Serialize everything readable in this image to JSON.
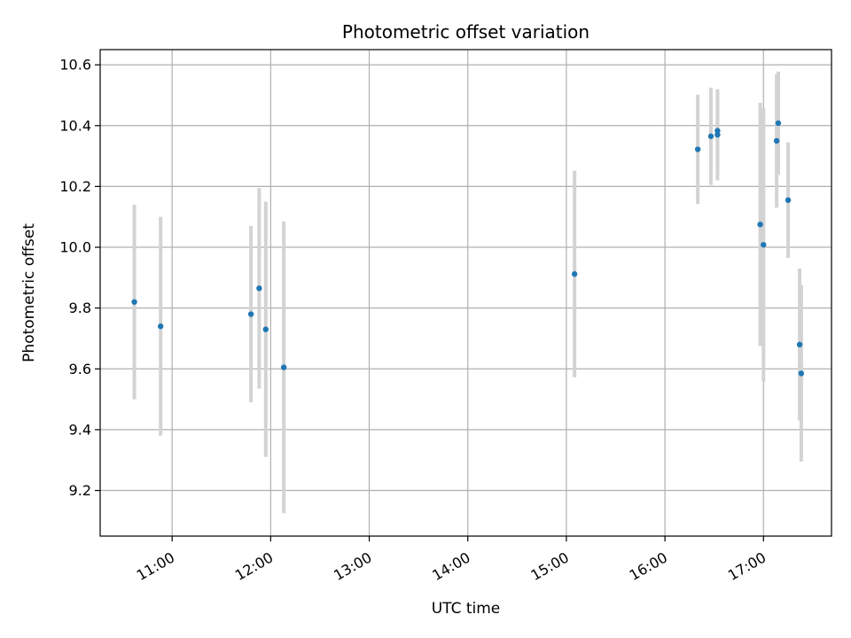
{
  "chart_data": {
    "type": "scatter",
    "title": "Photometric offset variation",
    "xlabel": "UTC time",
    "ylabel": "Photometric offset",
    "x_tick_labels": [
      "11:00",
      "12:00",
      "13:00",
      "14:00",
      "15:00",
      "16:00",
      "17:00"
    ],
    "x_ticks_hours": [
      11,
      12,
      13,
      14,
      15,
      16,
      17
    ],
    "y_ticks": [
      9.2,
      9.4,
      9.6,
      9.8,
      10.0,
      10.2,
      10.4,
      10.6
    ],
    "y_tick_labels": [
      "9.2",
      "9.4",
      "9.6",
      "9.8",
      "10.0",
      "10.2",
      "10.4",
      "10.6"
    ],
    "xlim_hours": [
      10.27,
      17.69
    ],
    "ylim": [
      9.05,
      10.65
    ],
    "grid": true,
    "marker_color": "#1f77b4",
    "errorbar_color": "#d3d3d3",
    "points": [
      {
        "time": "10:37",
        "y": 9.82,
        "err": 0.32
      },
      {
        "time": "10:53",
        "y": 9.74,
        "err": 0.36
      },
      {
        "time": "11:48",
        "y": 9.78,
        "err": 0.29
      },
      {
        "time": "11:53",
        "y": 9.865,
        "err": 0.33
      },
      {
        "time": "11:57",
        "y": 9.73,
        "err": 0.42
      },
      {
        "time": "12:08",
        "y": 9.605,
        "err": 0.48
      },
      {
        "time": "15:05",
        "y": 9.912,
        "err": 0.34
      },
      {
        "time": "16:20",
        "y": 10.322,
        "err": 0.18
      },
      {
        "time": "16:28",
        "y": 10.365,
        "err": 0.16
      },
      {
        "time": "16:32",
        "y": 10.383,
        "err": 0.13
      },
      {
        "time": "16:32",
        "y": 10.37,
        "err": 0.15
      },
      {
        "time": "16:58",
        "y": 10.075,
        "err": 0.4
      },
      {
        "time": "17:00",
        "y": 10.008,
        "err": 0.45
      },
      {
        "time": "17:08",
        "y": 10.35,
        "err": 0.22
      },
      {
        "time": "17:09",
        "y": 10.408,
        "err": 0.17
      },
      {
        "time": "17:15",
        "y": 10.155,
        "err": 0.19
      },
      {
        "time": "17:22",
        "y": 9.68,
        "err": 0.25
      },
      {
        "time": "17:23",
        "y": 9.585,
        "err": 0.29
      }
    ]
  }
}
